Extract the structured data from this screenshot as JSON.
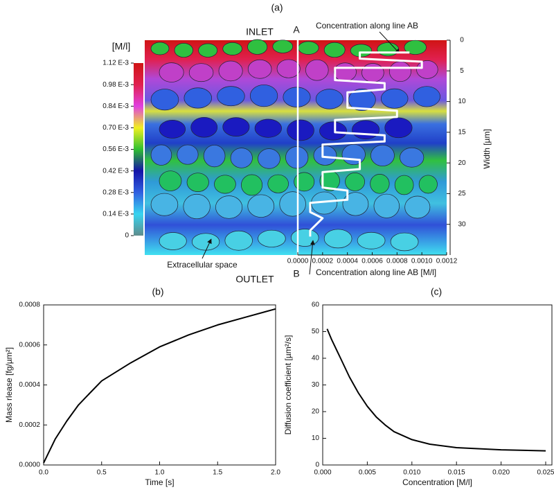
{
  "chart_data": [
    {
      "type": "line",
      "panel": "(a)",
      "x_label": "Concentration along line AB [M/l]",
      "y_label": "Width [µm]",
      "color": "#ffffff",
      "x": [
        0.0009,
        0.0005,
        0.0005,
        0.001,
        0.001,
        0.0003,
        0.0003,
        0.0007,
        0.0007,
        0.0004,
        0.0004,
        0.0008,
        0.0008,
        0.0003,
        0.0003,
        0.0007,
        0.0007,
        0.0002,
        0.0002,
        0.0005,
        0.0005,
        0.0002,
        0.0002,
        0.0004,
        0.0004,
        0.0001,
        0.0001,
        0.0002,
        0.0001,
        0.0001
      ],
      "values": [
        2,
        2,
        3,
        3.5,
        4.5,
        4.5,
        6.5,
        7,
        8,
        8.5,
        11,
        11.5,
        12.5,
        13,
        15,
        15.5,
        16.5,
        17,
        19,
        19.5,
        21,
        21.5,
        24,
        24.5,
        26,
        26.5,
        28,
        29,
        31,
        32
      ],
      "xlim": [
        0,
        0.0012
      ],
      "xticks": [
        {
          "value": 0,
          "label": "0.0000"
        },
        {
          "value": 0.0002,
          "label": "0.0002"
        },
        {
          "value": 0.0004,
          "label": "0.0004"
        },
        {
          "value": 0.0006,
          "label": "0.0006"
        },
        {
          "value": 0.0008,
          "label": "0.0008"
        },
        {
          "value": 0.001,
          "label": "0.0010"
        },
        {
          "value": 0.0012,
          "label": "0.0012"
        }
      ],
      "ylim": [
        35,
        0
      ],
      "yticks": [
        0,
        5,
        10,
        15,
        20,
        25,
        30
      ],
      "annotations": [
        "INLET",
        "OUTLET",
        "A",
        "B",
        "Concentration along line AB",
        "Extracellular space"
      ],
      "colorbar": {
        "label": "[M/l]",
        "lim": [
          0,
          0.00112
        ],
        "colors": [
          "#5e8c8c",
          "#38d4f0",
          "#3060e0",
          "#1414a8",
          "#30c030",
          "#f0f020",
          "#e040e0",
          "#e02050",
          "#d01414"
        ],
        "ticks": [
          0,
          {
            "value": 0.00014,
            "label": "0.14 E-3"
          },
          {
            "value": 0.00028,
            "label": "0.28 E-3"
          },
          {
            "value": 0.00042,
            "label": "0.42 E-3"
          },
          {
            "value": 0.00056,
            "label": "0.56 E-3"
          },
          {
            "value": 0.0007,
            "label": "0.70 E-3"
          },
          {
            "value": 0.00084,
            "label": "0.84 E-3"
          },
          {
            "value": 0.00098,
            "label": "0.98 E-3"
          },
          {
            "value": 0.00112,
            "label": "1.12 E-3"
          }
        ]
      }
    },
    {
      "type": "line",
      "panel": "(b)",
      "x_label": "Time [s]",
      "y_label": "Mass rlease [fg/µm²]",
      "color": "#000000",
      "x": [
        0,
        0.1,
        0.2,
        0.3,
        0.4,
        0.5,
        0.75,
        1.0,
        1.25,
        1.5,
        1.75,
        2.0
      ],
      "values": [
        1e-05,
        0.00013,
        0.00022,
        0.0003,
        0.00036,
        0.00042,
        0.00051,
        0.00059,
        0.00065,
        0.0007,
        0.00074,
        0.00078
      ],
      "xlim": [
        0,
        2
      ],
      "xticks": [
        {
          "value": 0,
          "label": "0.0"
        },
        {
          "value": 0.5,
          "label": "0.5"
        },
        {
          "value": 1,
          "label": "1.0"
        },
        {
          "value": 1.5,
          "label": "1.5"
        },
        {
          "value": 2,
          "label": "2.0"
        }
      ],
      "ylim": [
        0,
        0.0008
      ],
      "yticks": [
        {
          "value": 0,
          "label": "0.0000"
        },
        {
          "value": 0.0002,
          "label": "0.0002"
        },
        {
          "value": 0.0004,
          "label": "0.0004"
        },
        {
          "value": 0.0006,
          "label": "0.0006"
        },
        {
          "value": 0.0008,
          "label": "0.0008"
        }
      ]
    },
    {
      "type": "line",
      "panel": "(c)",
      "x_label": "Concentration [M/l]",
      "y_label": "Diffusion coefficient [µm²/s]",
      "color": "#000000",
      "x": [
        0.0005,
        0.001,
        0.002,
        0.003,
        0.004,
        0.005,
        0.006,
        0.007,
        0.008,
        0.01,
        0.012,
        0.015,
        0.02,
        0.025
      ],
      "values": [
        51,
        47,
        40,
        33,
        27,
        22,
        18,
        15,
        12.5,
        9.5,
        7.8,
        6.5,
        5.7,
        5.3
      ],
      "xlim": [
        0,
        0.0257
      ],
      "xticks": [
        {
          "value": 0,
          "label": "0.000"
        },
        {
          "value": 0.005,
          "label": "0.005"
        },
        {
          "value": 0.01,
          "label": "0.010"
        },
        {
          "value": 0.015,
          "label": "0.015"
        },
        {
          "value": 0.02,
          "label": "0.020"
        },
        {
          "value": 0.025,
          "label": "0.025"
        }
      ],
      "ylim": [
        0,
        60
      ],
      "yticks": [
        0,
        10,
        20,
        30,
        40,
        50,
        60
      ]
    }
  ]
}
